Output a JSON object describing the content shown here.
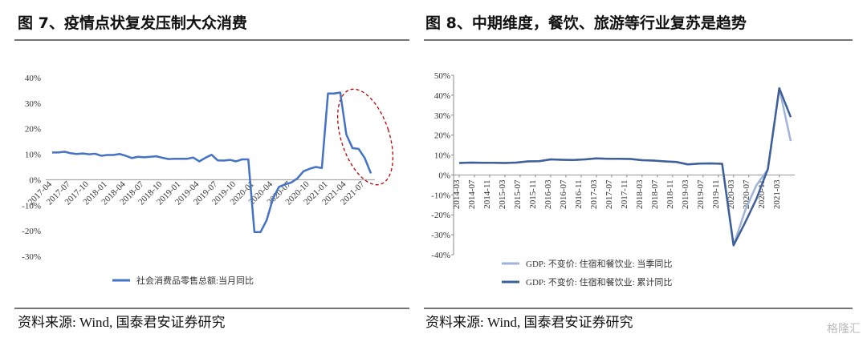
{
  "header": {
    "left_title": "图 7、疫情点状复发压制大众消费",
    "right_title": "图 8、中期维度，餐饮、旅游等行业复苏是趋势"
  },
  "chart_data": [
    {
      "type": "line",
      "categories": [
        "2017-04",
        null,
        null,
        "2017-07",
        null,
        null,
        "2017-10",
        null,
        null,
        "2018-01",
        null,
        null,
        "2018-04",
        null,
        null,
        "2018-07",
        null,
        null,
        "2018-10",
        null,
        null,
        "2019-01",
        null,
        null,
        "2019-04",
        null,
        null,
        "2019-07",
        null,
        null,
        "2019-10",
        null,
        null,
        "2020-01",
        null,
        null,
        "2020-04",
        null,
        null,
        "2020-07",
        null,
        null,
        "2020-10",
        null,
        null,
        "2021-01",
        null,
        null,
        "2021-04",
        null,
        null,
        "2021-07",
        null
      ],
      "series": [
        {
          "name": "社会消费品零售总额:当月同比",
          "color": "#4472c4",
          "values": [
            10.7,
            10.7,
            11.0,
            10.4,
            10.1,
            10.3,
            10.0,
            10.2,
            9.4,
            9.7,
            9.7,
            10.1,
            9.4,
            8.5,
            9.0,
            8.8,
            9.0,
            9.2,
            8.6,
            8.1,
            8.2,
            8.2,
            8.2,
            8.7,
            7.2,
            8.6,
            9.8,
            7.6,
            7.5,
            7.8,
            7.2,
            8.0,
            8.0,
            -20.5,
            -20.5,
            -15.8,
            -7.5,
            -2.8,
            -1.8,
            -1.1,
            0.5,
            3.3,
            4.3,
            5.0,
            4.6,
            33.8,
            33.8,
            34.2,
            17.7,
            12.4,
            12.1,
            8.5,
            2.5
          ]
        }
      ],
      "ylim": [
        -30,
        40
      ],
      "yticks": [
        {
          "value": 40,
          "label": "40%"
        },
        {
          "value": 30,
          "label": "30%"
        },
        {
          "value": 20,
          "label": "20%"
        },
        {
          "value": 10,
          "label": "10%"
        },
        {
          "value": 0,
          "label": "0%"
        },
        {
          "value": -10,
          "label": "-10%"
        },
        {
          "value": -20,
          "label": "-20%"
        },
        {
          "value": -30,
          "label": "-30%"
        }
      ],
      "grid": false,
      "legend": "bottom"
    },
    {
      "type": "line",
      "x": [
        "2014-03",
        "2014-06",
        "2014-09",
        "2014-12",
        "2015-03",
        "2015-06",
        "2015-09",
        "2015-12",
        "2016-03",
        "2016-06",
        "2016-09",
        "2016-12",
        "2017-03",
        "2017-06",
        "2017-09",
        "2017-12",
        "2018-03",
        "2018-06",
        "2018-09",
        "2018-12",
        "2019-03",
        "2019-06",
        "2019-09",
        "2019-12",
        "2020-03",
        "2020-06",
        "2020-09",
        "2020-12",
        "2021-03",
        "2021-06"
      ],
      "xlim": [
        "2014-03",
        "2021-06"
      ],
      "xticks": [
        "2014-03",
        "2014-07",
        "2014-11",
        "2015-03",
        "2015-07",
        "2015-11",
        "2016-03",
        "2016-07",
        "2016-11",
        "2017-03",
        "2017-07",
        "2017-11",
        "2018-03",
        "2018-07",
        "2018-11",
        "2019-03",
        "2019-07",
        "2019-11",
        "2020-03",
        "2020-07",
        "2020-11",
        "2021-03"
      ],
      "series": [
        {
          "name": "GDP: 不变价: 住宿和餐饮业: 当季同比",
          "color": "#9fb4d8",
          "values": [
            6.0,
            6.2,
            6.1,
            6.1,
            6.0,
            6.2,
            6.8,
            6.9,
            7.8,
            7.6,
            7.5,
            7.8,
            8.3,
            8.1,
            8.1,
            8.0,
            7.4,
            7.2,
            6.8,
            6.5,
            5.3,
            5.7,
            5.8,
            5.6,
            -35.3,
            -18.0,
            -5.1,
            2.7,
            43.5,
            17.0
          ]
        },
        {
          "name": "GDP: 不变价: 住宿和餐饮业: 累计同比",
          "color": "#3e5f99",
          "values": [
            6.0,
            6.2,
            6.1,
            6.1,
            6.0,
            6.2,
            6.8,
            6.9,
            7.8,
            7.6,
            7.5,
            7.8,
            8.3,
            8.1,
            8.1,
            8.0,
            7.4,
            7.2,
            6.8,
            6.5,
            5.3,
            5.7,
            5.8,
            5.6,
            -35.3,
            -24.0,
            -12.0,
            3.0,
            43.5,
            29.0
          ]
        }
      ],
      "ylim": [
        -40,
        50
      ],
      "yticks": [
        {
          "value": 50,
          "label": "50%"
        },
        {
          "value": 40,
          "label": "40%"
        },
        {
          "value": 30,
          "label": "30%"
        },
        {
          "value": 20,
          "label": "20%"
        },
        {
          "value": 10,
          "label": "10%"
        },
        {
          "value": 0,
          "label": "0%"
        },
        {
          "value": -10,
          "label": "-10%"
        },
        {
          "value": -20,
          "label": "-20%"
        },
        {
          "value": -30,
          "label": "-30%"
        },
        {
          "value": -40,
          "label": "-40%"
        }
      ],
      "grid": false,
      "legend": "bottom"
    }
  ],
  "sources": [
    "资料来源: Wind, 国泰君安证券研究",
    "资料来源: Wind, 国泰君安证券研究"
  ],
  "watermark": "格隆汇"
}
